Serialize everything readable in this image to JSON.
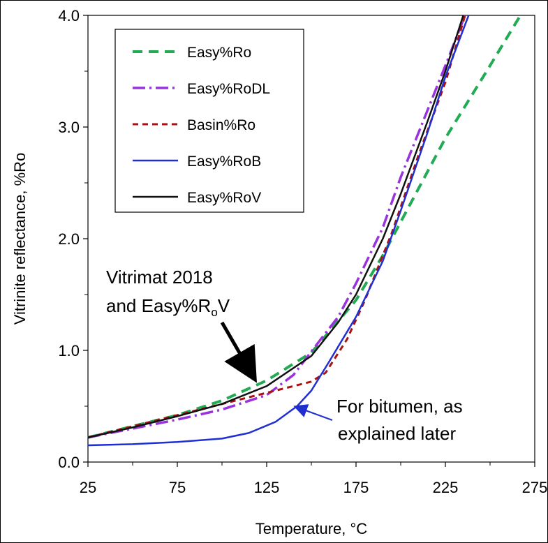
{
  "chart_data": {
    "type": "line",
    "xlabel": "Temperature, °C",
    "ylabel": "Vitrinite reflectance, %Ro",
    "xlim": [
      25,
      275
    ],
    "ylim": [
      0,
      4
    ],
    "xticks": [
      "25",
      "75",
      "125",
      "175",
      "225",
      "275"
    ],
    "yticks": [
      "0.0",
      "1.0",
      "2.0",
      "3.0",
      "4.0"
    ],
    "grid": false,
    "legend_position": "top-left",
    "series": [
      {
        "name": "Easy%Ro",
        "color": "#22aa55",
        "dash": "dashed",
        "x": [
          25,
          50,
          75,
          100,
          125,
          150,
          175,
          190,
          200,
          225,
          250,
          267
        ],
        "y": [
          0.22,
          0.32,
          0.42,
          0.55,
          0.73,
          0.98,
          1.45,
          1.85,
          2.15,
          2.9,
          3.55,
          4.0
        ]
      },
      {
        "name": "Easy%RoDL",
        "color": "#9933dd",
        "dash": "dash-dot",
        "x": [
          25,
          50,
          75,
          100,
          125,
          140,
          150,
          165,
          175,
          190,
          200,
          215,
          225,
          236
        ],
        "y": [
          0.22,
          0.3,
          0.38,
          0.47,
          0.6,
          0.78,
          0.99,
          1.3,
          1.6,
          2.1,
          2.55,
          3.15,
          3.55,
          4.0
        ]
      },
      {
        "name": "Basin%Ro",
        "color": "#aa1111",
        "dash": "short-dash",
        "x": [
          25,
          50,
          75,
          100,
          125,
          150,
          158,
          170,
          180,
          195,
          210,
          225,
          236
        ],
        "y": [
          0.22,
          0.32,
          0.42,
          0.52,
          0.62,
          0.72,
          0.8,
          1.1,
          1.45,
          2.05,
          2.75,
          3.4,
          4.0
        ]
      },
      {
        "name": "Easy%RoB",
        "color": "#1f2fd0",
        "dash": "solid",
        "x": [
          25,
          50,
          75,
          100,
          115,
          130,
          142,
          150,
          160,
          175,
          190,
          200,
          215,
          225,
          238
        ],
        "y": [
          0.15,
          0.16,
          0.18,
          0.21,
          0.26,
          0.36,
          0.5,
          0.64,
          0.9,
          1.3,
          1.8,
          2.25,
          2.95,
          3.45,
          4.0
        ]
      },
      {
        "name": "Easy%RoV",
        "color": "#111111",
        "dash": "solid",
        "x": [
          25,
          50,
          75,
          100,
          125,
          150,
          165,
          175,
          190,
          200,
          215,
          225,
          235
        ],
        "y": [
          0.22,
          0.31,
          0.41,
          0.52,
          0.68,
          0.95,
          1.25,
          1.5,
          2.0,
          2.4,
          3.05,
          3.5,
          4.0
        ]
      }
    ],
    "annotations": [
      {
        "lines": [
          "Vitrimat 2018",
          "and Easy%RoV"
        ],
        "subscript_note": "o",
        "arrow_to": [
          122,
          0.68
        ],
        "color": "#000000"
      },
      {
        "lines": [
          "For bitumen, as",
          "explained later"
        ],
        "arrow_to": [
          142,
          0.5
        ],
        "color": "#1f2fd0"
      }
    ]
  }
}
